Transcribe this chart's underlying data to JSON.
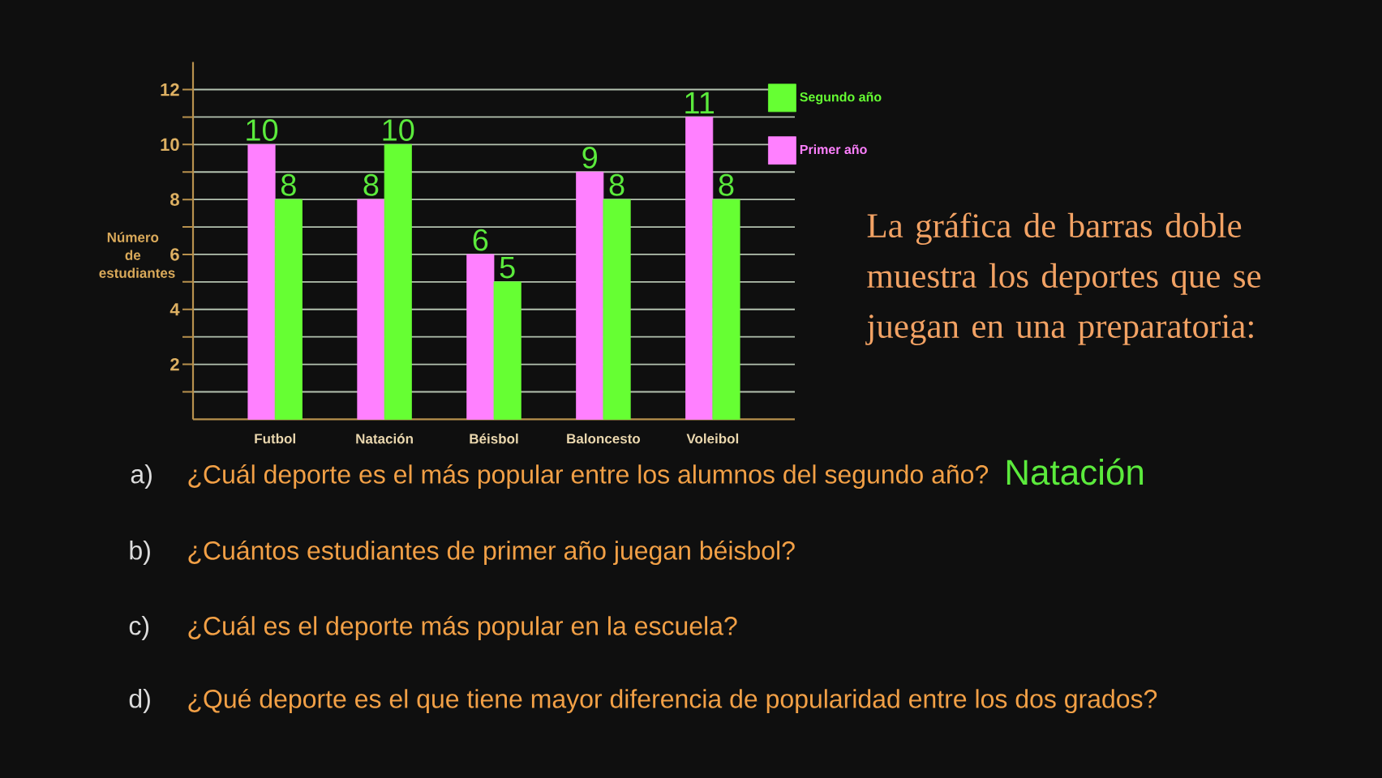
{
  "chart_data": {
    "type": "bar",
    "categories": [
      "Futbol",
      "Natación",
      "Béisbol",
      "Baloncesto",
      "Voleibol"
    ],
    "series": [
      {
        "name": "Primer año",
        "color": "#ff80ff",
        "values": [
          10,
          8,
          6,
          9,
          11
        ]
      },
      {
        "name": "Segundo año",
        "color": "#66ff33",
        "values": [
          8,
          10,
          5,
          8,
          8
        ]
      }
    ],
    "ylabel": "Número de estudiantes",
    "ylim": [
      0,
      13
    ],
    "yticks": [
      {
        "value": 1,
        "label": null
      },
      2,
      {
        "value": 3,
        "label": null
      },
      4,
      {
        "value": 5,
        "label": null
      },
      6,
      {
        "value": 7,
        "label": null
      },
      8,
      {
        "value": 9,
        "label": null
      },
      10,
      {
        "value": 11,
        "label": null
      },
      12
    ],
    "grid": "y",
    "legend": "top right",
    "data_labels": true,
    "annotations": [
      "La gráfica de barras doble muestra los deportes que se juegan en una preparatoria:",
      "a)",
      "¿Cuál deporte es el más popular entre los alumnos del segundo año?",
      "Natación",
      "b)",
      "¿Cuántos estudiantes de primer año juegan béisbol?",
      "c)",
      "¿Cuál es el deporte más popular en la escuela?",
      "d)",
      "¿Qué deporte es el que tiene mayor diferencia de popularidad entre los dos grados?"
    ]
  }
}
